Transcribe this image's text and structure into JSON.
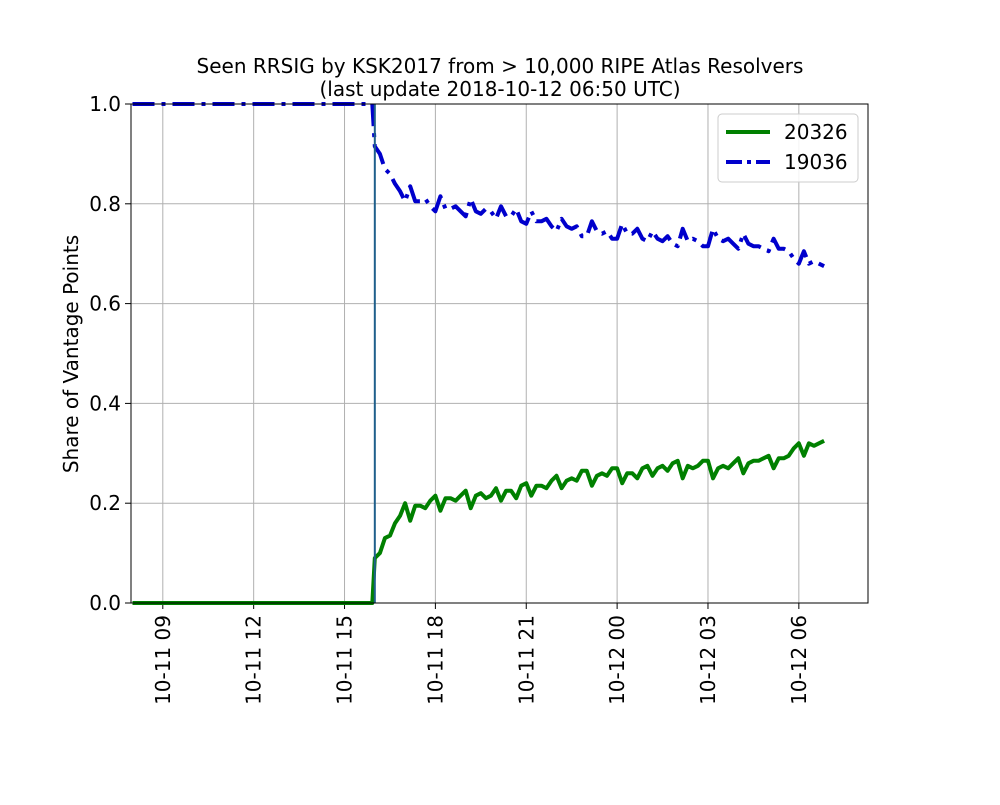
{
  "chart_data": {
    "type": "line",
    "title": "Seen RRSIG by KSK2017 from > 10,000 RIPE Atlas Resolvers",
    "subtitle": "(last update 2018-10-12 06:50 UTC)",
    "xlabel": "",
    "ylabel": "Share of Vantage Points",
    "xlim": [
      "2018-10-11 07:57",
      "2018-10-12 08:17"
    ],
    "ylim": [
      0.0,
      1.0
    ],
    "x_ticks": [
      {
        "label": "10-11 09",
        "t": "2018-10-11 09:00"
      },
      {
        "label": "10-11 12",
        "t": "2018-10-11 12:00"
      },
      {
        "label": "10-11 15",
        "t": "2018-10-11 15:00"
      },
      {
        "label": "10-11 18",
        "t": "2018-10-11 18:00"
      },
      {
        "label": "10-11 21",
        "t": "2018-10-11 21:00"
      },
      {
        "label": "10-12 00",
        "t": "2018-10-12 00:00"
      },
      {
        "label": "10-12 03",
        "t": "2018-10-12 03:00"
      },
      {
        "label": "10-12 06",
        "t": "2018-10-12 06:00"
      }
    ],
    "y_ticks": [
      {
        "label": "0.0",
        "v": 0.0
      },
      {
        "label": "0.2",
        "v": 0.2
      },
      {
        "label": "0.4",
        "v": 0.4
      },
      {
        "label": "0.6",
        "v": 0.6
      },
      {
        "label": "0.8",
        "v": 0.8
      },
      {
        "label": "1.0",
        "v": 1.0
      }
    ],
    "grid": true,
    "legend_position": "top-right",
    "vline": {
      "x": "2018-10-11 16:00",
      "color": "#1f5f8b"
    },
    "series": [
      {
        "name": "20326",
        "color": "#008000",
        "style": "solid",
        "points": [
          [
            "2018-10-11 08:00",
            0.0
          ],
          [
            "2018-10-11 09:00",
            0.0
          ],
          [
            "2018-10-11 10:00",
            0.0
          ],
          [
            "2018-10-11 11:00",
            0.0
          ],
          [
            "2018-10-11 12:00",
            0.0
          ],
          [
            "2018-10-11 13:00",
            0.0
          ],
          [
            "2018-10-11 14:00",
            0.0
          ],
          [
            "2018-10-11 15:00",
            0.0
          ],
          [
            "2018-10-11 15:55",
            0.0
          ],
          [
            "2018-10-11 16:00",
            0.09
          ],
          [
            "2018-10-11 16:10",
            0.1
          ],
          [
            "2018-10-11 16:20",
            0.13
          ],
          [
            "2018-10-11 16:30",
            0.135
          ],
          [
            "2018-10-11 16:40",
            0.16
          ],
          [
            "2018-10-11 16:50",
            0.175
          ],
          [
            "2018-10-11 17:00",
            0.2
          ],
          [
            "2018-10-11 17:10",
            0.165
          ],
          [
            "2018-10-11 17:20",
            0.195
          ],
          [
            "2018-10-11 17:30",
            0.195
          ],
          [
            "2018-10-11 17:40",
            0.19
          ],
          [
            "2018-10-11 17:50",
            0.205
          ],
          [
            "2018-10-11 18:00",
            0.215
          ],
          [
            "2018-10-11 18:10",
            0.185
          ],
          [
            "2018-10-11 18:20",
            0.21
          ],
          [
            "2018-10-11 18:30",
            0.21
          ],
          [
            "2018-10-11 18:40",
            0.205
          ],
          [
            "2018-10-11 18:50",
            0.215
          ],
          [
            "2018-10-11 19:00",
            0.225
          ],
          [
            "2018-10-11 19:10",
            0.19
          ],
          [
            "2018-10-11 19:20",
            0.215
          ],
          [
            "2018-10-11 19:30",
            0.22
          ],
          [
            "2018-10-11 19:40",
            0.21
          ],
          [
            "2018-10-11 19:50",
            0.215
          ],
          [
            "2018-10-11 20:00",
            0.23
          ],
          [
            "2018-10-11 20:10",
            0.205
          ],
          [
            "2018-10-11 20:20",
            0.225
          ],
          [
            "2018-10-11 20:30",
            0.225
          ],
          [
            "2018-10-11 20:40",
            0.21
          ],
          [
            "2018-10-11 20:50",
            0.235
          ],
          [
            "2018-10-11 21:00",
            0.24
          ],
          [
            "2018-10-11 21:10",
            0.215
          ],
          [
            "2018-10-11 21:20",
            0.235
          ],
          [
            "2018-10-11 21:30",
            0.235
          ],
          [
            "2018-10-11 21:40",
            0.23
          ],
          [
            "2018-10-11 21:50",
            0.245
          ],
          [
            "2018-10-11 22:00",
            0.255
          ],
          [
            "2018-10-11 22:10",
            0.23
          ],
          [
            "2018-10-11 22:20",
            0.245
          ],
          [
            "2018-10-11 22:30",
            0.25
          ],
          [
            "2018-10-11 22:40",
            0.245
          ],
          [
            "2018-10-11 22:50",
            0.265
          ],
          [
            "2018-10-11 23:00",
            0.265
          ],
          [
            "2018-10-11 23:10",
            0.235
          ],
          [
            "2018-10-11 23:20",
            0.255
          ],
          [
            "2018-10-11 23:30",
            0.26
          ],
          [
            "2018-10-11 23:40",
            0.255
          ],
          [
            "2018-10-11 23:50",
            0.27
          ],
          [
            "2018-10-12 00:00",
            0.27
          ],
          [
            "2018-10-12 00:10",
            0.24
          ],
          [
            "2018-10-12 00:20",
            0.26
          ],
          [
            "2018-10-12 00:30",
            0.26
          ],
          [
            "2018-10-12 00:40",
            0.25
          ],
          [
            "2018-10-12 00:50",
            0.27
          ],
          [
            "2018-10-12 01:00",
            0.275
          ],
          [
            "2018-10-12 01:10",
            0.255
          ],
          [
            "2018-10-12 01:20",
            0.27
          ],
          [
            "2018-10-12 01:30",
            0.275
          ],
          [
            "2018-10-12 01:40",
            0.265
          ],
          [
            "2018-10-12 01:50",
            0.28
          ],
          [
            "2018-10-12 02:00",
            0.285
          ],
          [
            "2018-10-12 02:10",
            0.25
          ],
          [
            "2018-10-12 02:20",
            0.275
          ],
          [
            "2018-10-12 02:30",
            0.27
          ],
          [
            "2018-10-12 02:40",
            0.275
          ],
          [
            "2018-10-12 02:50",
            0.285
          ],
          [
            "2018-10-12 03:00",
            0.285
          ],
          [
            "2018-10-12 03:10",
            0.25
          ],
          [
            "2018-10-12 03:20",
            0.27
          ],
          [
            "2018-10-12 03:30",
            0.275
          ],
          [
            "2018-10-12 03:40",
            0.27
          ],
          [
            "2018-10-12 03:50",
            0.28
          ],
          [
            "2018-10-12 04:00",
            0.29
          ],
          [
            "2018-10-12 04:10",
            0.26
          ],
          [
            "2018-10-12 04:20",
            0.28
          ],
          [
            "2018-10-12 04:30",
            0.285
          ],
          [
            "2018-10-12 04:40",
            0.285
          ],
          [
            "2018-10-12 04:50",
            0.29
          ],
          [
            "2018-10-12 05:00",
            0.295
          ],
          [
            "2018-10-12 05:10",
            0.27
          ],
          [
            "2018-10-12 05:20",
            0.29
          ],
          [
            "2018-10-12 05:30",
            0.29
          ],
          [
            "2018-10-12 05:40",
            0.295
          ],
          [
            "2018-10-12 05:50",
            0.31
          ],
          [
            "2018-10-12 06:00",
            0.32
          ],
          [
            "2018-10-12 06:10",
            0.295
          ],
          [
            "2018-10-12 06:20",
            0.32
          ],
          [
            "2018-10-12 06:30",
            0.315
          ],
          [
            "2018-10-12 06:40",
            0.32
          ],
          [
            "2018-10-12 06:50",
            0.325
          ]
        ]
      },
      {
        "name": "19036",
        "color": "#0000cc",
        "style": "dashdot",
        "points": [
          [
            "2018-10-11 08:00",
            1.0
          ],
          [
            "2018-10-11 09:00",
            1.0
          ],
          [
            "2018-10-11 10:00",
            1.0
          ],
          [
            "2018-10-11 11:00",
            1.0
          ],
          [
            "2018-10-11 12:00",
            1.0
          ],
          [
            "2018-10-11 13:00",
            1.0
          ],
          [
            "2018-10-11 14:00",
            1.0
          ],
          [
            "2018-10-11 15:00",
            1.0
          ],
          [
            "2018-10-11 15:55",
            1.0
          ],
          [
            "2018-10-11 16:00",
            0.915
          ],
          [
            "2018-10-11 16:10",
            0.9
          ],
          [
            "2018-10-11 16:20",
            0.87
          ],
          [
            "2018-10-11 16:30",
            0.86
          ],
          [
            "2018-10-11 16:40",
            0.84
          ],
          [
            "2018-10-11 16:50",
            0.825
          ],
          [
            "2018-10-11 17:00",
            0.805
          ],
          [
            "2018-10-11 17:10",
            0.835
          ],
          [
            "2018-10-11 17:20",
            0.805
          ],
          [
            "2018-10-11 17:30",
            0.805
          ],
          [
            "2018-10-11 17:40",
            0.81
          ],
          [
            "2018-10-11 17:50",
            0.795
          ],
          [
            "2018-10-11 18:00",
            0.785
          ],
          [
            "2018-10-11 18:10",
            0.815
          ],
          [
            "2018-10-11 18:20",
            0.79
          ],
          [
            "2018-10-11 18:30",
            0.79
          ],
          [
            "2018-10-11 18:40",
            0.795
          ],
          [
            "2018-10-11 18:50",
            0.785
          ],
          [
            "2018-10-11 19:00",
            0.775
          ],
          [
            "2018-10-11 19:10",
            0.81
          ],
          [
            "2018-10-11 19:20",
            0.785
          ],
          [
            "2018-10-11 19:30",
            0.78
          ],
          [
            "2018-10-11 19:40",
            0.79
          ],
          [
            "2018-10-11 19:50",
            0.785
          ],
          [
            "2018-10-11 20:00",
            0.77
          ],
          [
            "2018-10-11 20:10",
            0.795
          ],
          [
            "2018-10-11 20:20",
            0.775
          ],
          [
            "2018-10-11 20:30",
            0.775
          ],
          [
            "2018-10-11 20:40",
            0.79
          ],
          [
            "2018-10-11 20:50",
            0.765
          ],
          [
            "2018-10-11 21:00",
            0.76
          ],
          [
            "2018-10-11 21:10",
            0.785
          ],
          [
            "2018-10-11 21:20",
            0.765
          ],
          [
            "2018-10-11 21:30",
            0.765
          ],
          [
            "2018-10-11 21:40",
            0.77
          ],
          [
            "2018-10-11 21:50",
            0.755
          ],
          [
            "2018-10-11 22:00",
            0.745
          ],
          [
            "2018-10-11 22:10",
            0.77
          ],
          [
            "2018-10-11 22:20",
            0.755
          ],
          [
            "2018-10-11 22:30",
            0.75
          ],
          [
            "2018-10-11 22:40",
            0.755
          ],
          [
            "2018-10-11 22:50",
            0.735
          ],
          [
            "2018-10-11 23:00",
            0.735
          ],
          [
            "2018-10-11 23:10",
            0.765
          ],
          [
            "2018-10-11 23:20",
            0.745
          ],
          [
            "2018-10-11 23:30",
            0.74
          ],
          [
            "2018-10-11 23:40",
            0.745
          ],
          [
            "2018-10-11 23:50",
            0.73
          ],
          [
            "2018-10-12 00:00",
            0.73
          ],
          [
            "2018-10-12 00:10",
            0.76
          ],
          [
            "2018-10-12 00:20",
            0.74
          ],
          [
            "2018-10-12 00:30",
            0.74
          ],
          [
            "2018-10-12 00:40",
            0.75
          ],
          [
            "2018-10-12 00:50",
            0.73
          ],
          [
            "2018-10-12 01:00",
            0.725
          ],
          [
            "2018-10-12 01:10",
            0.745
          ],
          [
            "2018-10-12 01:20",
            0.73
          ],
          [
            "2018-10-12 01:30",
            0.725
          ],
          [
            "2018-10-12 01:40",
            0.735
          ],
          [
            "2018-10-12 01:50",
            0.72
          ],
          [
            "2018-10-12 02:00",
            0.715
          ],
          [
            "2018-10-12 02:10",
            0.75
          ],
          [
            "2018-10-12 02:20",
            0.725
          ],
          [
            "2018-10-12 02:30",
            0.73
          ],
          [
            "2018-10-12 02:40",
            0.725
          ],
          [
            "2018-10-12 02:50",
            0.715
          ],
          [
            "2018-10-12 03:00",
            0.715
          ],
          [
            "2018-10-12 03:10",
            0.75
          ],
          [
            "2018-10-12 03:20",
            0.73
          ],
          [
            "2018-10-12 03:30",
            0.725
          ],
          [
            "2018-10-12 03:40",
            0.73
          ],
          [
            "2018-10-12 03:50",
            0.72
          ],
          [
            "2018-10-12 04:00",
            0.71
          ],
          [
            "2018-10-12 04:10",
            0.74
          ],
          [
            "2018-10-12 04:20",
            0.72
          ],
          [
            "2018-10-12 04:30",
            0.715
          ],
          [
            "2018-10-12 04:40",
            0.715
          ],
          [
            "2018-10-12 04:50",
            0.71
          ],
          [
            "2018-10-12 05:00",
            0.705
          ],
          [
            "2018-10-12 05:10",
            0.73
          ],
          [
            "2018-10-12 05:20",
            0.71
          ],
          [
            "2018-10-12 05:30",
            0.71
          ],
          [
            "2018-10-12 05:40",
            0.705
          ],
          [
            "2018-10-12 05:50",
            0.69
          ],
          [
            "2018-10-12 06:00",
            0.68
          ],
          [
            "2018-10-12 06:10",
            0.705
          ],
          [
            "2018-10-12 06:20",
            0.68
          ],
          [
            "2018-10-12 06:30",
            0.685
          ],
          [
            "2018-10-12 06:40",
            0.68
          ],
          [
            "2018-10-12 06:50",
            0.675
          ]
        ]
      }
    ]
  }
}
